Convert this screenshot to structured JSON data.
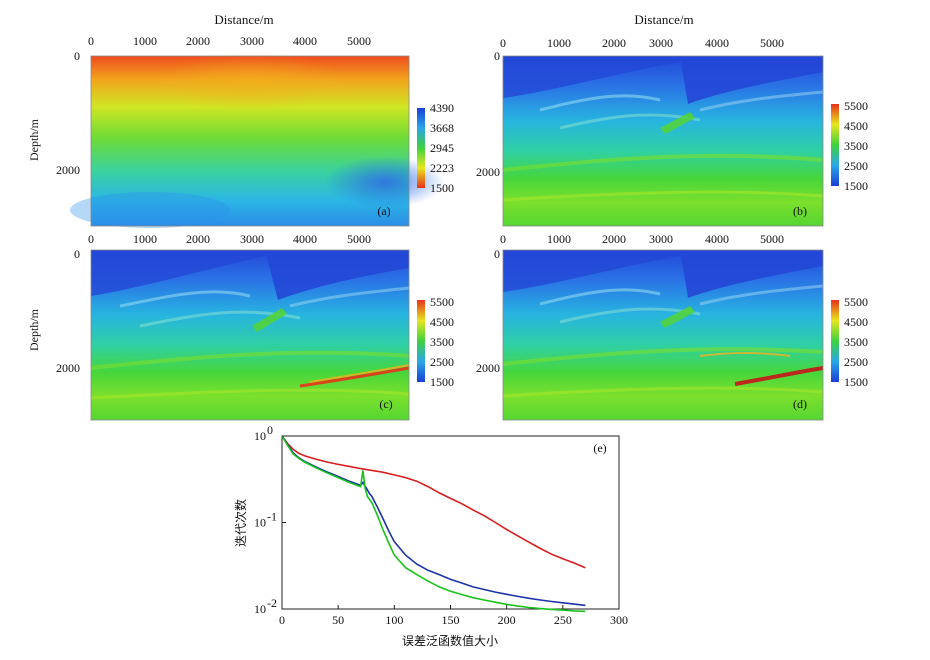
{
  "chart_data": [
    {
      "type": "heatmap",
      "panel": "(a)",
      "title": "Distance/m",
      "xlabel": "Distance/m",
      "ylabel": "Depth/m",
      "x_ticks": [
        "0",
        "1000",
        "2000",
        "3000",
        "4000",
        "5000"
      ],
      "y_ticks": [
        "0",
        "2000"
      ],
      "xlim": [
        0,
        6000
      ],
      "ylim": [
        0,
        3000
      ],
      "colorbar_ticks": [
        "4390",
        "3668",
        "2945",
        "2223",
        "1500"
      ],
      "colorbar_range": [
        1500,
        4390
      ],
      "colorbar_order": "blue-top"
    },
    {
      "type": "heatmap",
      "panel": "(b)",
      "title": "Distance/m",
      "xlabel": "Distance/m",
      "ylabel": "Depth/m",
      "x_ticks": [
        "0",
        "1000",
        "2000",
        "3000",
        "4000",
        "5000"
      ],
      "y_ticks": [
        "0",
        "2000"
      ],
      "xlim": [
        0,
        6000
      ],
      "ylim": [
        0,
        3000
      ],
      "colorbar_ticks": [
        "5500",
        "4500",
        "3500",
        "2500",
        "1500"
      ],
      "colorbar_range": [
        1500,
        5500
      ],
      "colorbar_order": "red-top"
    },
    {
      "type": "heatmap",
      "panel": "(c)",
      "xlabel": "Distance/m",
      "ylabel": "Depth/m",
      "x_ticks": [
        "0",
        "1000",
        "2000",
        "3000",
        "4000",
        "5000"
      ],
      "y_ticks": [
        "0",
        "2000"
      ],
      "xlim": [
        0,
        6000
      ],
      "ylim": [
        0,
        3000
      ],
      "colorbar_ticks": [
        "5500",
        "4500",
        "3500",
        "2500",
        "1500"
      ],
      "colorbar_range": [
        1500,
        5500
      ],
      "colorbar_order": "red-top"
    },
    {
      "type": "heatmap",
      "panel": "(d)",
      "xlabel": "Distance/m",
      "ylabel": "Depth/m",
      "x_ticks": [
        "0",
        "1000",
        "2000",
        "3000",
        "4000",
        "5000"
      ],
      "y_ticks": [
        "0",
        "2000"
      ],
      "xlim": [
        0,
        6000
      ],
      "ylim": [
        0,
        3000
      ],
      "colorbar_ticks": [
        "5500",
        "4500",
        "3500",
        "2500",
        "1500"
      ],
      "colorbar_range": [
        1500,
        5500
      ],
      "colorbar_order": "red-top"
    },
    {
      "type": "line",
      "panel": "(e)",
      "xlabel": "误差泛函数值大小",
      "ylabel": "迭代次数",
      "yscale": "log",
      "xlim": [
        0,
        300
      ],
      "ylim": [
        0.01,
        1
      ],
      "x_ticks": [
        "0",
        "50",
        "100",
        "150",
        "200",
        "250",
        "300"
      ],
      "y_ticks": [
        {
          "base": "10",
          "exp": "0"
        },
        {
          "base": "10",
          "exp": "-1"
        },
        {
          "base": "10",
          "exp": "-2"
        }
      ],
      "series": [
        {
          "name": "red",
          "color": "#d81e1e",
          "x": [
            0,
            5,
            10,
            15,
            20,
            30,
            40,
            50,
            60,
            70,
            80,
            90,
            100,
            110,
            120,
            130,
            140,
            150,
            160,
            170,
            180,
            190,
            200,
            210,
            220,
            230,
            240,
            250,
            260,
            270
          ],
          "y": [
            1,
            0.82,
            0.7,
            0.63,
            0.59,
            0.54,
            0.5,
            0.47,
            0.445,
            0.42,
            0.4,
            0.38,
            0.355,
            0.33,
            0.3,
            0.26,
            0.22,
            0.19,
            0.165,
            0.14,
            0.12,
            0.1,
            0.083,
            0.07,
            0.059,
            0.05,
            0.043,
            0.038,
            0.034,
            0.03
          ]
        },
        {
          "name": "blue",
          "color": "#1a33a8",
          "x": [
            0,
            5,
            10,
            15,
            20,
            30,
            40,
            50,
            60,
            70,
            72,
            75,
            78,
            80,
            85,
            90,
            95,
            100,
            110,
            120,
            130,
            140,
            150,
            160,
            170,
            180,
            190,
            200,
            210,
            220,
            230,
            240,
            250,
            260,
            270
          ],
          "y": [
            1,
            0.8,
            0.64,
            0.56,
            0.51,
            0.44,
            0.385,
            0.34,
            0.3,
            0.27,
            0.29,
            0.25,
            0.215,
            0.2,
            0.15,
            0.11,
            0.08,
            0.06,
            0.042,
            0.033,
            0.028,
            0.025,
            0.022,
            0.02,
            0.018,
            0.0168,
            0.0157,
            0.0148,
            0.014,
            0.0133,
            0.0127,
            0.0122,
            0.0118,
            0.0114,
            0.011
          ]
        },
        {
          "name": "green",
          "color": "#19c319",
          "x": [
            0,
            5,
            10,
            15,
            20,
            30,
            40,
            50,
            60,
            70,
            72,
            74,
            76,
            80,
            85,
            90,
            95,
            100,
            110,
            120,
            130,
            140,
            150,
            160,
            170,
            180,
            190,
            200,
            210,
            220,
            230,
            240,
            250,
            260,
            270
          ],
          "y": [
            1,
            0.78,
            0.62,
            0.55,
            0.5,
            0.43,
            0.375,
            0.33,
            0.29,
            0.26,
            0.4,
            0.25,
            0.2,
            0.17,
            0.12,
            0.082,
            0.058,
            0.042,
            0.03,
            0.025,
            0.021,
            0.018,
            0.016,
            0.0147,
            0.0135,
            0.0127,
            0.012,
            0.0113,
            0.0108,
            0.0104,
            0.0101,
            0.0099,
            0.0097,
            0.0095,
            0.0094
          ]
        }
      ]
    }
  ]
}
